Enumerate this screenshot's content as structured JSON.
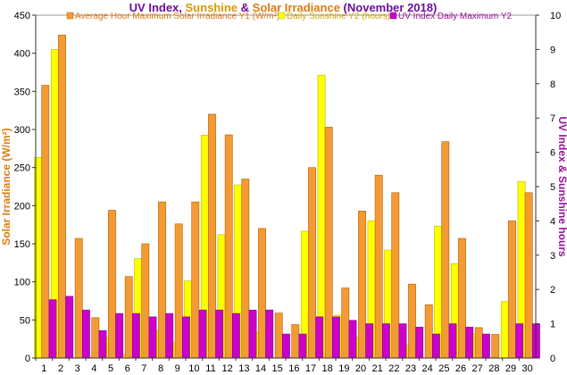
{
  "chart_data": {
    "type": "bar",
    "title": {
      "parts": [
        {
          "text": "UV Index",
          "color": "#6a0d9e"
        },
        {
          "text": ", ",
          "color": "#6a0d9e"
        },
        {
          "text": "Sunshine",
          "color": "#d89a00"
        },
        {
          "text": " & ",
          "color": "#6a0d9e"
        },
        {
          "text": "Solar Irradiance",
          "color": "#e07a10"
        },
        {
          "text": " (November 2018)",
          "color": "#6a0d9e"
        }
      ]
    },
    "ylabel_left": "Solar Irradiance (W/m²)",
    "ylabel_right": "UV Index & Sunshine hours",
    "left_axis": {
      "min": 0,
      "max": 450,
      "step": 50
    },
    "right_axis": {
      "min": 0,
      "max": 10,
      "step": 1
    },
    "categories": [
      "1",
      "2",
      "3",
      "4",
      "5",
      "6",
      "7",
      "8",
      "9",
      "10",
      "11",
      "12",
      "13",
      "14",
      "15",
      "16",
      "17",
      "18",
      "19",
      "20",
      "21",
      "22",
      "23",
      "24",
      "25",
      "26",
      "27",
      "28",
      "29",
      "30"
    ],
    "series": [
      {
        "name": "Daily Sunshine Y2 (hours)",
        "axis": "right",
        "color": "#ffff00",
        "stroke": "#b8b800",
        "values": [
          5.85,
          9.0,
          0,
          0.02,
          0.6,
          0.1,
          2.9,
          0.8,
          0.45,
          2.25,
          6.5,
          3.6,
          5.05,
          0.75,
          0,
          0.02,
          3.7,
          8.25,
          1.25,
          0.6,
          4.0,
          3.15,
          0.38,
          0,
          3.85,
          2.75,
          0.7,
          0,
          1.65,
          5.15
        ]
      },
      {
        "name": "Average Hour Maximum Solar Irradiance Y1 (W/m²)",
        "axis": "left",
        "color": "#f39a34",
        "stroke": "#b55f00",
        "values": [
          358,
          424,
          157,
          53,
          194,
          107,
          150,
          205,
          176,
          205,
          320,
          293,
          235,
          170,
          59,
          44,
          250,
          303,
          92,
          193,
          240,
          217,
          97,
          70,
          284,
          157,
          40,
          31,
          180,
          217
        ]
      },
      {
        "name": "UV Index Daily Maximum Y2",
        "axis": "right",
        "color": "#cc00cc",
        "stroke": "#7a007a",
        "values": [
          1.7,
          1.8,
          1.4,
          0.8,
          1.3,
          1.3,
          1.2,
          1.3,
          1.2,
          1.4,
          1.4,
          1.3,
          1.4,
          1.4,
          0.7,
          0.7,
          1.2,
          1.2,
          1.1,
          1.0,
          1.0,
          1.0,
          0.9,
          0.7,
          1.0,
          0.9,
          0.7,
          0,
          1.0,
          1.0
        ]
      }
    ],
    "legend_placement": "top-center",
    "grid": false,
    "axis_colors": {
      "left": "#e07a10",
      "right": "#9c0f9c"
    }
  }
}
